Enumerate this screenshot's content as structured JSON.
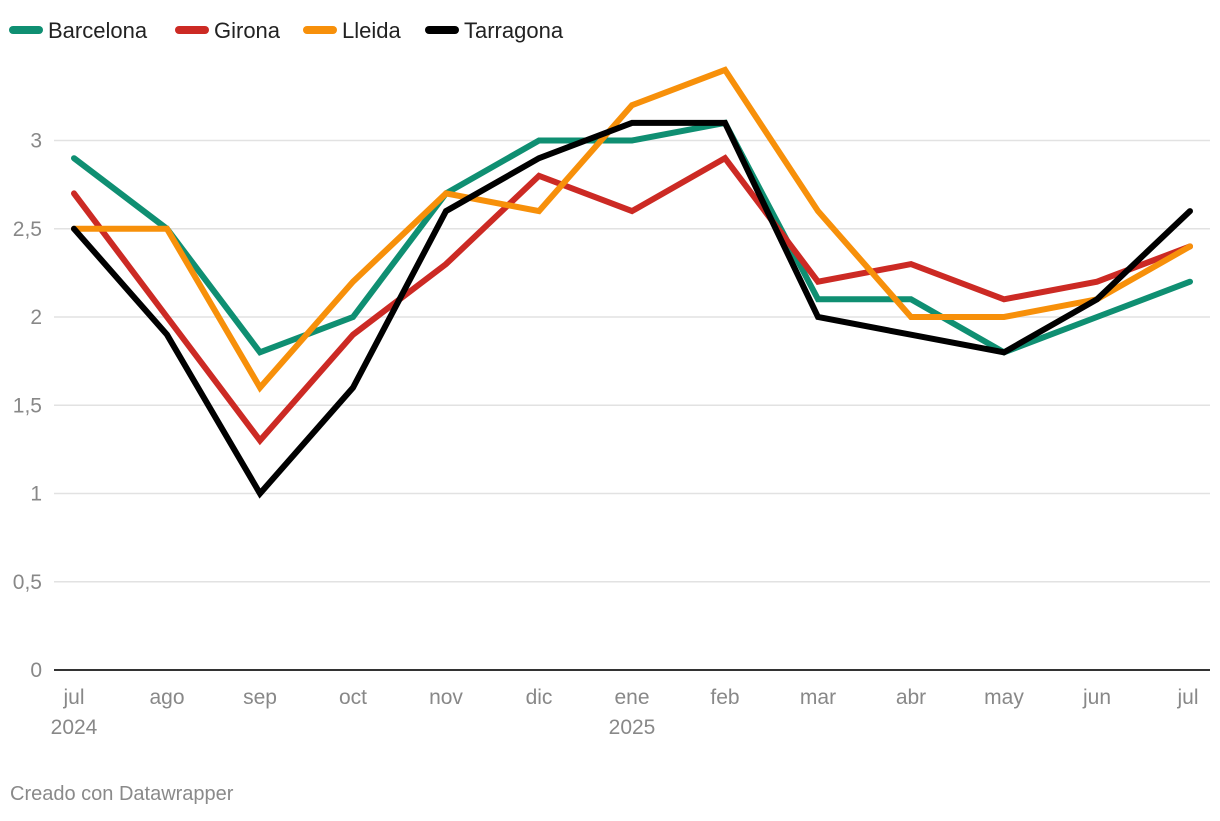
{
  "chart_data": {
    "type": "line",
    "title": "",
    "xlabel": "",
    "ylabel": "",
    "ylim": [
      0,
      3.5
    ],
    "grid": true,
    "legend_position": "top-left",
    "categories": [
      "jul",
      "ago",
      "sep",
      "oct",
      "nov",
      "dic",
      "ene",
      "feb",
      "mar",
      "abr",
      "may",
      "jun",
      "jul"
    ],
    "x_year_labels": [
      {
        "index": 0,
        "label": "2024"
      },
      {
        "index": 6,
        "label": "2025"
      }
    ],
    "y_ticks": [
      0,
      0.5,
      1,
      1.5,
      2,
      2.5,
      3
    ],
    "y_tick_labels": [
      "0",
      "0,5",
      "1",
      "1,5",
      "2",
      "2,5",
      "3"
    ],
    "series": [
      {
        "name": "Barcelona",
        "color": "#0f8f72",
        "values": [
          2.9,
          2.5,
          1.8,
          2.0,
          2.7,
          3.0,
          3.0,
          3.1,
          2.1,
          2.1,
          1.8,
          2.0,
          2.2
        ]
      },
      {
        "name": "Girona",
        "color": "#cc2a24",
        "values": [
          2.7,
          2.0,
          1.3,
          1.9,
          2.3,
          2.8,
          2.6,
          2.9,
          2.2,
          2.3,
          2.1,
          2.2,
          2.4
        ]
      },
      {
        "name": "Lleida",
        "color": "#f7900a",
        "values": [
          2.5,
          2.5,
          1.6,
          2.2,
          2.7,
          2.6,
          3.2,
          3.4,
          2.6,
          2.0,
          2.0,
          2.1,
          2.4
        ]
      },
      {
        "name": "Tarragona",
        "color": "#000000",
        "values": [
          2.5,
          1.9,
          1.0,
          1.6,
          2.6,
          2.9,
          3.1,
          3.1,
          2.0,
          1.9,
          1.8,
          2.1,
          2.6
        ]
      }
    ]
  },
  "footer": {
    "credit": "Creado con Datawrapper"
  }
}
